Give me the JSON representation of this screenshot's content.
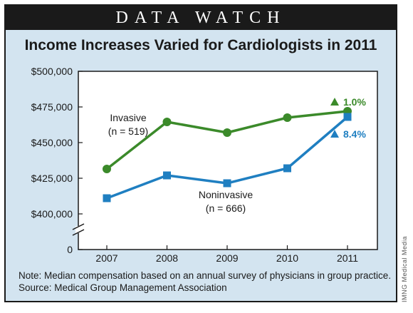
{
  "header": {
    "banner": "DATA WATCH"
  },
  "chart_data": {
    "type": "line",
    "title": "Income Increases Varied for Cardiologists in 2011",
    "x": [
      "2007",
      "2008",
      "2009",
      "2010",
      "2011"
    ],
    "y_ticks": [
      "$500,000",
      "$475,000",
      "$450,000",
      "$425,000",
      "$400,000",
      "0"
    ],
    "ylim": [
      400000,
      500000
    ],
    "y_axis_break": true,
    "grid": false,
    "series": [
      {
        "name": "Invasive",
        "label_lines": [
          "Invasive",
          "(n = 519)"
        ],
        "values": [
          431500,
          464500,
          457000,
          467500,
          472000
        ],
        "color": "#3b8a2a",
        "marker": "circle",
        "change_label": "1.0%"
      },
      {
        "name": "Noninvasive",
        "label_lines": [
          "Noninvasive",
          "(n = 666)"
        ],
        "values": [
          411000,
          427000,
          421500,
          432000,
          468000
        ],
        "color": "#1f7fc1",
        "marker": "square",
        "change_label": "8.4%"
      }
    ]
  },
  "footer": {
    "note": "Note: Median compensation based on an annual survey of physicians in group practice.",
    "source": "Source: Medical Group Management Association"
  },
  "credit": "IMNG Medical Media"
}
